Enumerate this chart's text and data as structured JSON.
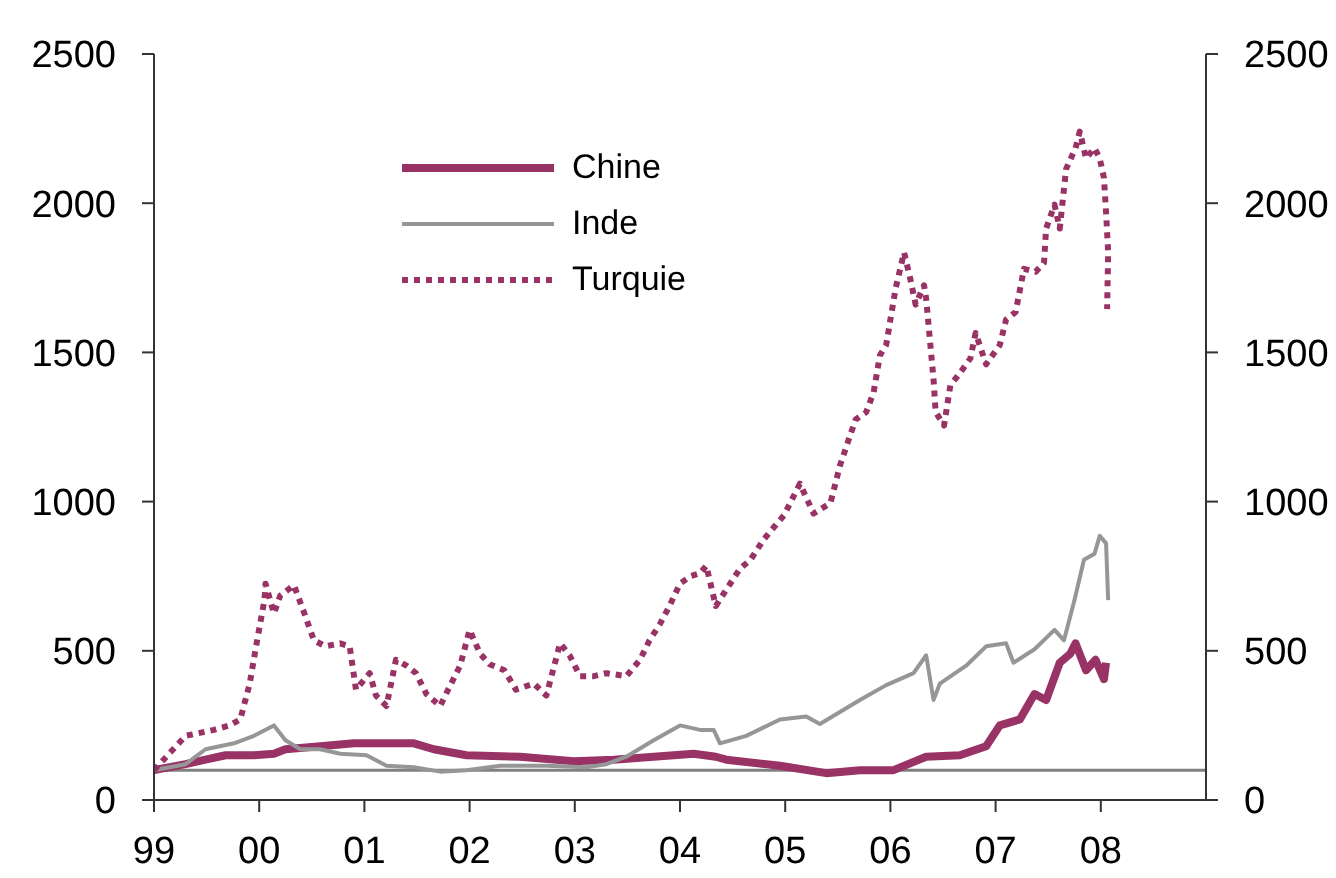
{
  "chart_data": {
    "type": "line",
    "xlim": [
      1999,
      2009
    ],
    "xticks": [
      {
        "value": 1999,
        "label": "99"
      },
      {
        "value": 2000,
        "label": "00"
      },
      {
        "value": 2001,
        "label": "01"
      },
      {
        "value": 2002,
        "label": "02"
      },
      {
        "value": 2003,
        "label": "03"
      },
      {
        "value": 2004,
        "label": "04"
      },
      {
        "value": 2005,
        "label": "05"
      },
      {
        "value": 2006,
        "label": "06"
      },
      {
        "value": 2007,
        "label": "07"
      },
      {
        "value": 2008,
        "label": "08"
      }
    ],
    "ylim": [
      0,
      2500
    ],
    "yticks": [
      0,
      500,
      1000,
      1500,
      2000,
      2500
    ],
    "y2lim": [
      0,
      2500
    ],
    "y2ticks": [
      0,
      500,
      1000,
      1500,
      2000,
      2500
    ],
    "legend": "top left",
    "ref_lines": [
      {
        "axis": "y",
        "value": 100,
        "color": "#808080"
      }
    ],
    "series": [
      {
        "name": "Chine",
        "color": "#993366",
        "line_style": "solid",
        "x": [
          1999.0,
          1999.3,
          1999.49,
          1999.68,
          1999.95,
          2000.14,
          2000.25,
          2000.58,
          2000.9,
          2001.21,
          2001.47,
          2001.66,
          2001.97,
          2002.48,
          2002.99,
          2003.37,
          2003.75,
          2004.13,
          2004.34,
          2004.44,
          2004.95,
          2005.39,
          2005.71,
          2006.03,
          2006.34,
          2006.66,
          2006.91,
          2007.04,
          2007.23,
          2007.37,
          2007.48,
          2007.61,
          2007.71,
          2007.76,
          2007.86,
          2007.95,
          2008.03,
          2008.05
        ],
        "values": [
          100,
          120,
          135,
          150,
          150,
          155,
          170,
          180,
          190,
          190,
          190,
          170,
          150,
          145,
          130,
          135,
          145,
          155,
          145,
          135,
          115,
          90,
          100,
          100,
          145,
          150,
          180,
          250,
          270,
          355,
          335,
          460,
          490,
          525,
          435,
          470,
          405,
          460
        ]
      },
      {
        "name": "Inde",
        "color": "#969696",
        "line_style": "solid",
        "x": [
          1999.0,
          1999.3,
          1999.49,
          1999.76,
          1999.95,
          2000.14,
          2000.25,
          2000.39,
          2000.58,
          2000.77,
          2001.02,
          2001.21,
          2001.47,
          2001.72,
          2001.97,
          2002.29,
          2002.73,
          2003.11,
          2003.3,
          2003.49,
          2003.75,
          2004.0,
          2004.19,
          2004.32,
          2004.38,
          2004.63,
          2004.95,
          2005.2,
          2005.33,
          2005.71,
          2005.96,
          2006.22,
          2006.34,
          2006.41,
          2006.47,
          2006.72,
          2006.91,
          2007.1,
          2007.17,
          2007.37,
          2007.56,
          2007.65,
          2007.75,
          2007.84,
          2007.94,
          2007.99,
          2008.05,
          2008.07
        ],
        "values": [
          100,
          120,
          170,
          190,
          215,
          250,
          200,
          170,
          170,
          155,
          150,
          115,
          110,
          95,
          100,
          115,
          115,
          110,
          120,
          145,
          200,
          250,
          235,
          235,
          190,
          215,
          270,
          280,
          255,
          335,
          385,
          425,
          485,
          335,
          390,
          450,
          515,
          525,
          460,
          505,
          570,
          535,
          670,
          805,
          825,
          885,
          860,
          670
        ]
      },
      {
        "name": "Turquie",
        "color": "#993366",
        "line_style": "dotted",
        "x": [
          1999.0,
          1999.3,
          1999.57,
          1999.72,
          1999.82,
          1999.91,
          1999.97,
          2000.05,
          2000.06,
          2000.14,
          2000.2,
          2000.33,
          2000.43,
          2000.52,
          2000.63,
          2000.77,
          2000.86,
          2000.92,
          2001.05,
          2001.11,
          2001.21,
          2001.3,
          2001.4,
          2001.49,
          2001.59,
          2001.72,
          2001.81,
          2001.91,
          2002.0,
          2002.1,
          2002.19,
          2002.33,
          2002.44,
          2002.61,
          2002.73,
          2002.86,
          2002.95,
          2003.05,
          2003.18,
          2003.3,
          2003.49,
          2003.62,
          2003.71,
          2003.81,
          2003.9,
          2004.0,
          2004.1,
          2004.19,
          2004.25,
          2004.34,
          2004.44,
          2004.57,
          2004.67,
          2004.8,
          2004.99,
          2005.14,
          2005.27,
          2005.43,
          2005.52,
          2005.62,
          2005.67,
          2005.77,
          2005.84,
          2005.9,
          2005.96,
          2006.0,
          2006.05,
          2006.13,
          2006.19,
          2006.24,
          2006.32,
          2006.34,
          2006.38,
          2006.41,
          2006.43,
          2006.51,
          2006.57,
          2006.66,
          2006.76,
          2006.81,
          2006.91,
          2007.04,
          2007.1,
          2007.19,
          2007.27,
          2007.38,
          2007.46,
          2007.48,
          2007.56,
          2007.61,
          2007.67,
          2007.76,
          2007.8,
          2007.86,
          2007.94,
          2007.99,
          2008.03,
          2008.05,
          2008.07,
          2008.06
        ],
        "values": [
          100,
          215,
          235,
          250,
          270,
          390,
          515,
          670,
          725,
          625,
          685,
          720,
          625,
          535,
          515,
          525,
          515,
          370,
          425,
          350,
          315,
          470,
          450,
          425,
          355,
          315,
          380,
          450,
          570,
          490,
          455,
          435,
          370,
          390,
          350,
          525,
          485,
          415,
          415,
          425,
          415,
          470,
          535,
          590,
          650,
          725,
          750,
          760,
          785,
          650,
          705,
          775,
          805,
          875,
          955,
          1060,
          960,
          995,
          1120,
          1225,
          1275,
          1300,
          1365,
          1490,
          1525,
          1610,
          1715,
          1835,
          1745,
          1660,
          1725,
          1680,
          1525,
          1410,
          1300,
          1255,
          1390,
          1430,
          1480,
          1565,
          1460,
          1525,
          1610,
          1635,
          1780,
          1770,
          1800,
          1915,
          1995,
          1915,
          2115,
          2185,
          2240,
          2150,
          2185,
          2150,
          2085,
          1970,
          1835,
          1645
        ]
      }
    ]
  }
}
